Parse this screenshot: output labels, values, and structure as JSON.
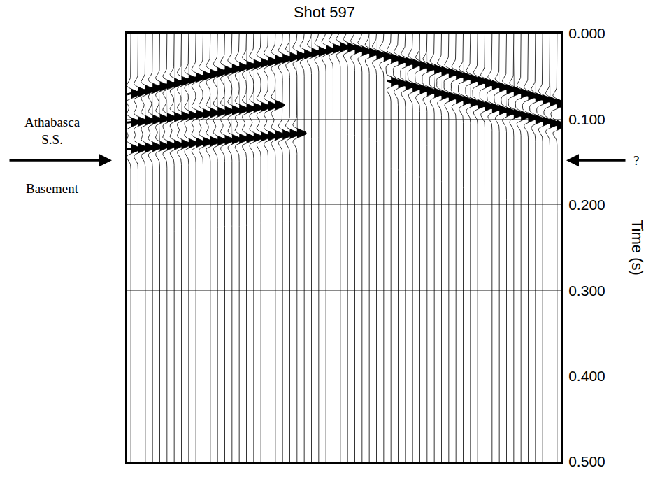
{
  "chart_data": {
    "type": "seismic_wiggle",
    "title": "Shot 597",
    "y_label": "Time (s)",
    "xlim": [
      0,
      100
    ],
    "ylim": [
      0.5,
      0
    ],
    "yticks": [
      {
        "value": 0,
        "label": "0.000"
      },
      {
        "value": 0.1,
        "label": "0.100"
      },
      {
        "value": 0.2,
        "label": "0.200"
      },
      {
        "value": 0.3,
        "label": "0.300"
      },
      {
        "value": 0.4,
        "label": "0.400"
      },
      {
        "value": 0.5,
        "label": "0.500"
      }
    ],
    "tick_labels": "y",
    "grid": true,
    "series": [
      {
        "color": "#000000",
        "x": [
          0,
          25,
          50,
          75,
          100
        ],
        "values": [
          0.071,
          0.04,
          0.015,
          0.047,
          0.083
        ]
      },
      {
        "color": "#000000",
        "x": [
          0,
          35
        ],
        "values": [
          0.104,
          0.083
        ]
      },
      {
        "color": "#000000",
        "x": [
          0,
          40
        ],
        "values": [
          0.135,
          0.116
        ]
      },
      {
        "color": "#000000",
        "x": [
          60,
          100
        ],
        "values": [
          0.055,
          0.108
        ]
      }
    ],
    "boundary": {
      "y": 0.148,
      "above": "Athabasca S.S.",
      "below": "Basement",
      "right": "?"
    }
  }
}
